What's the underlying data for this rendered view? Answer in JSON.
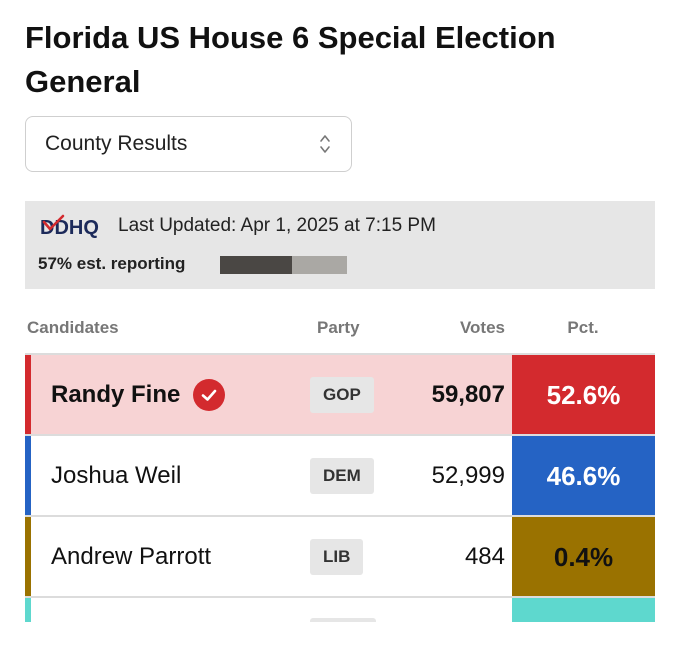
{
  "title": "Florida US House 6 Special Election General",
  "select": {
    "value": "County Results"
  },
  "info": {
    "logo_text": "DDHQ",
    "last_updated": "Last Updated: Apr 1, 2025 at 7:15 PM",
    "reporting_label": "57% est. reporting",
    "reporting_fraction": 0.57
  },
  "table": {
    "headers": {
      "candidates": "Candidates",
      "party": "Party",
      "votes": "Votes",
      "pct": "Pct."
    },
    "rows": [
      {
        "name": "Randy Fine",
        "party": "GOP",
        "votes": "59,807",
        "pct": "52.6%",
        "winner": true,
        "color": "#d32a2e",
        "row_bg": "#f7d3d4",
        "pct_text_color": "#ffffff"
      },
      {
        "name": "Joshua Weil",
        "party": "DEM",
        "votes": "52,999",
        "pct": "46.6%",
        "winner": false,
        "color": "#2563c4",
        "row_bg": "#ffffff",
        "pct_text_color": "#ffffff"
      },
      {
        "name": "Andrew Parrott",
        "party": "LIB",
        "votes": "484",
        "pct": "0.4%",
        "winner": false,
        "color": "#9a7200",
        "row_bg": "#ffffff",
        "pct_text_color": "#111111"
      },
      {
        "name": "",
        "party": "",
        "votes": "",
        "pct": "",
        "winner": false,
        "color": "#5ed8ce",
        "row_bg": "#ffffff",
        "pct_text_color": "#111111"
      }
    ]
  }
}
